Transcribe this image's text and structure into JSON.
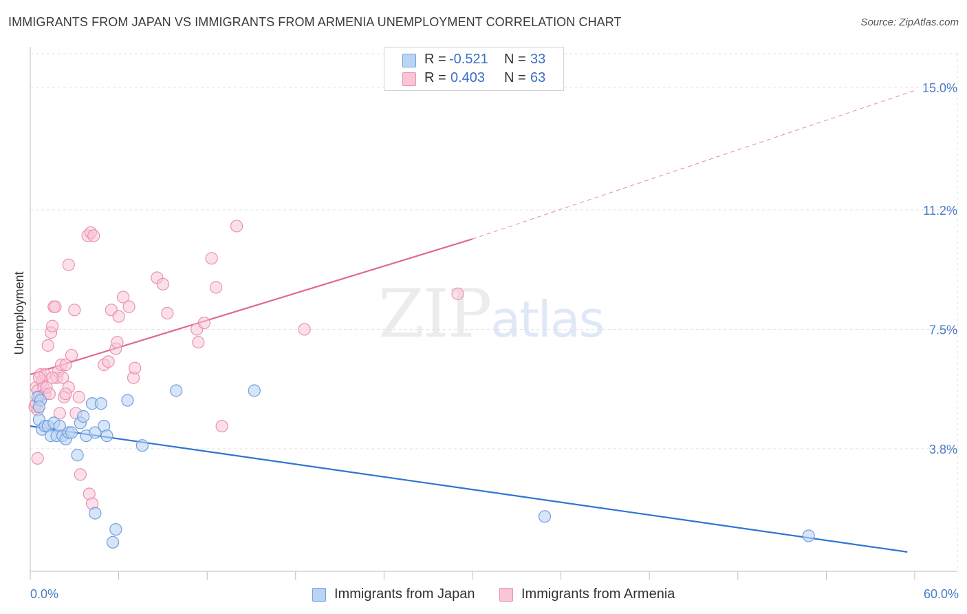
{
  "title": "IMMIGRANTS FROM JAPAN VS IMMIGRANTS FROM ARMENIA UNEMPLOYMENT CORRELATION CHART",
  "source": "Source: ZipAtlas.com",
  "watermark": {
    "zip": "ZIP",
    "atlas": "atlas"
  },
  "legend": {
    "r_label": "R =",
    "n_label": "N =",
    "japan": {
      "r": "-0.521",
      "n": "33"
    },
    "armenia": {
      "r": "0.403",
      "n": "63"
    }
  },
  "chart_data": {
    "type": "scatter",
    "title": "IMMIGRANTS FROM JAPAN VS IMMIGRANTS FROM ARMENIA UNEMPLOYMENT CORRELATION CHART",
    "xlabel": "",
    "ylabel": "Unemployment",
    "xlim": [
      0,
      60
    ],
    "ylim": [
      0,
      16
    ],
    "x_tick_labels": [
      "0.0%",
      "60.0%"
    ],
    "y_ticks": [
      3.8,
      7.5,
      11.2,
      15.0
    ],
    "y_tick_labels": [
      "3.8%",
      "7.5%",
      "11.2%",
      "15.0%"
    ],
    "colors": {
      "japan": "#6f9ee0",
      "japan_fill": "#bcd4f4",
      "armenia": "#ec8fb0",
      "armenia_fill": "#f8c6d7",
      "japan_line": "#2f74d0",
      "armenia_line": "#e0698f",
      "tick": "#4a7cc4",
      "grid": "#e2e2e2"
    },
    "series": [
      {
        "name": "Immigrants from Japan",
        "points": [
          [
            0.5,
            5.4
          ],
          [
            0.7,
            5.3
          ],
          [
            0.6,
            5.1
          ],
          [
            0.6,
            4.7
          ],
          [
            0.8,
            4.4
          ],
          [
            1.0,
            4.5
          ],
          [
            1.2,
            4.5
          ],
          [
            1.4,
            4.2
          ],
          [
            1.6,
            4.6
          ],
          [
            1.8,
            4.2
          ],
          [
            2.0,
            4.5
          ],
          [
            2.2,
            4.2
          ],
          [
            2.4,
            4.1
          ],
          [
            2.6,
            4.3
          ],
          [
            2.8,
            4.3
          ],
          [
            3.2,
            3.6
          ],
          [
            3.4,
            4.6
          ],
          [
            3.6,
            4.8
          ],
          [
            3.8,
            4.2
          ],
          [
            4.2,
            5.2
          ],
          [
            4.4,
            4.3
          ],
          [
            4.8,
            5.2
          ],
          [
            5.0,
            4.5
          ],
          [
            5.2,
            4.2
          ],
          [
            4.4,
            1.8
          ],
          [
            5.8,
            1.3
          ],
          [
            5.6,
            0.9
          ],
          [
            6.6,
            5.3
          ],
          [
            7.6,
            3.9
          ],
          [
            9.9,
            5.6
          ],
          [
            15.2,
            5.6
          ],
          [
            34.9,
            1.7
          ],
          [
            52.8,
            1.1
          ]
        ],
        "trend": {
          "x": [
            0,
            59.5
          ],
          "y": [
            4.5,
            0.6
          ]
        }
      },
      {
        "name": "Immigrants from Armenia",
        "points": [
          [
            0.4,
            5.7
          ],
          [
            0.5,
            5.6
          ],
          [
            0.6,
            5.4
          ],
          [
            0.7,
            6.1
          ],
          [
            0.8,
            5.9
          ],
          [
            0.9,
            5.7
          ],
          [
            1.0,
            6.1
          ],
          [
            1.0,
            5.5
          ],
          [
            1.1,
            5.7
          ],
          [
            1.2,
            7.0
          ],
          [
            1.4,
            7.4
          ],
          [
            1.5,
            7.6
          ],
          [
            1.6,
            8.2
          ],
          [
            1.7,
            8.2
          ],
          [
            1.8,
            6.0
          ],
          [
            1.9,
            6.2
          ],
          [
            2.0,
            4.9
          ],
          [
            2.1,
            6.4
          ],
          [
            2.2,
            6.0
          ],
          [
            2.3,
            5.4
          ],
          [
            2.4,
            6.4
          ],
          [
            2.6,
            9.5
          ],
          [
            2.6,
            5.7
          ],
          [
            2.8,
            6.7
          ],
          [
            3.0,
            8.1
          ],
          [
            3.1,
            4.9
          ],
          [
            3.3,
            5.4
          ],
          [
            3.4,
            3.0
          ],
          [
            3.9,
            10.4
          ],
          [
            4.1,
            10.5
          ],
          [
            4.3,
            10.4
          ],
          [
            4.0,
            2.4
          ],
          [
            4.2,
            2.1
          ],
          [
            5.0,
            6.4
          ],
          [
            5.3,
            6.5
          ],
          [
            5.5,
            8.1
          ],
          [
            5.8,
            6.9
          ],
          [
            5.9,
            7.1
          ],
          [
            6.0,
            7.9
          ],
          [
            6.3,
            8.5
          ],
          [
            6.7,
            8.2
          ],
          [
            7.0,
            6.0
          ],
          [
            7.1,
            6.3
          ],
          [
            0.5,
            3.5
          ],
          [
            8.6,
            9.1
          ],
          [
            9.0,
            8.9
          ],
          [
            9.3,
            8.0
          ],
          [
            11.3,
            7.5
          ],
          [
            11.4,
            7.1
          ],
          [
            11.8,
            7.7
          ],
          [
            12.3,
            9.7
          ],
          [
            12.6,
            8.8
          ],
          [
            13.0,
            4.5
          ],
          [
            14.0,
            10.7
          ],
          [
            18.6,
            7.5
          ],
          [
            29.0,
            8.6
          ],
          [
            0.3,
            5.1
          ],
          [
            0.4,
            5.2
          ],
          [
            0.5,
            5.0
          ],
          [
            1.3,
            5.5
          ],
          [
            0.6,
            6.0
          ],
          [
            1.5,
            6.0
          ],
          [
            2.4,
            5.5
          ]
        ],
        "trend": {
          "x": [
            0,
            30
          ],
          "y": [
            6.1,
            10.3
          ]
        },
        "trend_extension": {
          "x": [
            30,
            60
          ],
          "y": [
            10.3,
            14.9
          ]
        }
      }
    ],
    "legend": [
      "Immigrants from Japan",
      "Immigrants from Armenia"
    ]
  }
}
